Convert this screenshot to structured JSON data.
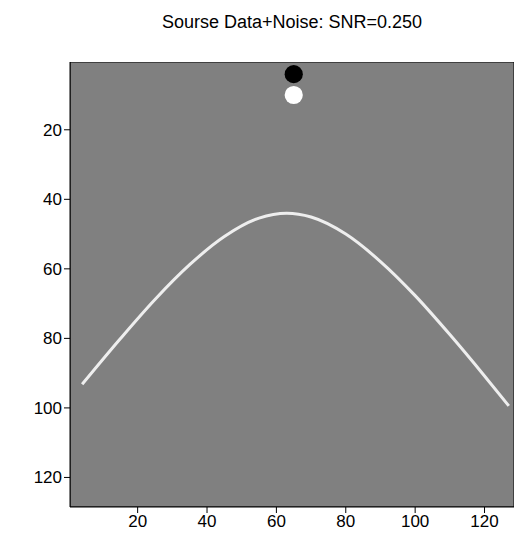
{
  "chart_data": {
    "type": "line",
    "title": "Sourse Data+Noise: SNR=0.250",
    "xlim": [
      0.5,
      128.5
    ],
    "ylim": [
      0.5,
      128.5
    ],
    "xticks": [
      20,
      40,
      60,
      80,
      100,
      120
    ],
    "yticks": [
      20,
      40,
      60,
      80,
      100,
      120
    ],
    "grid": false,
    "color": "#808080",
    "series": [
      {
        "type": "line",
        "color": "#eeeeee",
        "x": [
          4,
          15,
          25,
          35,
          45,
          55,
          63,
          70,
          80,
          90,
          100,
          110,
          120,
          127
        ],
        "values": [
          93.2,
          80.1,
          68.8,
          58.8,
          50.7,
          45.4,
          44,
          45.1,
          50.0,
          57.9,
          67.7,
          78.9,
          90.8,
          99.4
        ]
      },
      {
        "type": "scatter",
        "colors": [
          "#000000",
          "#ffffff"
        ],
        "x": [
          65,
          65
        ],
        "values": [
          4,
          10
        ]
      }
    ]
  }
}
